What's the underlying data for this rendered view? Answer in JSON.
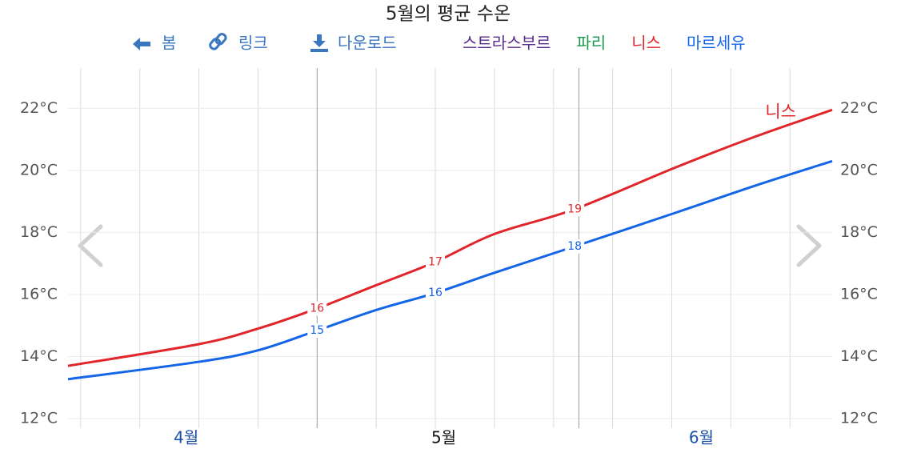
{
  "chart_data": {
    "type": "line",
    "title": "5월의 평균 수온",
    "toolbar": [
      "봄",
      "링크",
      "다운로드"
    ],
    "x": [
      91.5,
      107,
      114,
      121,
      128,
      135,
      142,
      151.5,
      163.5,
      173,
      182
    ],
    "xlim": [
      91.5,
      182
    ],
    "xticks": [
      {
        "value": 105.5,
        "label": "4월"
      },
      {
        "value": 136,
        "label": "5월"
      },
      {
        "value": 166.5,
        "label": "6월"
      }
    ],
    "highlight_x": [
      121,
      152
    ],
    "ylim": [
      12,
      23.3
    ],
    "yticks": [
      {
        "value": 12,
        "label": "12°C"
      },
      {
        "value": 14,
        "label": "14°C"
      },
      {
        "value": 16,
        "label": "16°C"
      },
      {
        "value": 18,
        "label": "18°C"
      },
      {
        "value": 20,
        "label": "20°C"
      },
      {
        "value": 22,
        "label": "22°C"
      }
    ],
    "grid": true,
    "series": [
      {
        "name": "스트라스부르",
        "color": "#5b2d8e",
        "visible": false
      },
      {
        "name": "파리",
        "color": "#1a9850",
        "visible": false
      },
      {
        "name": "니스",
        "color": "#e0262b",
        "visible": true,
        "end_label": true,
        "values": [
          13.7,
          14.4,
          14.9,
          15.55,
          16.3,
          17.05,
          17.95,
          18.75,
          20.1,
          21.1,
          21.95
        ],
        "value_labels": [
          null,
          null,
          null,
          "16",
          null,
          "17",
          null,
          "19",
          null,
          null,
          null
        ]
      },
      {
        "name": "마르세유",
        "color": "#1565e8",
        "visible": true,
        "values": [
          13.27,
          13.83,
          14.2,
          14.84,
          15.5,
          16.05,
          16.7,
          17.55,
          18.64,
          19.52,
          20.3
        ],
        "value_labels": [
          null,
          null,
          null,
          "15",
          null,
          "16",
          null,
          "18",
          null,
          null,
          null
        ]
      }
    ]
  }
}
